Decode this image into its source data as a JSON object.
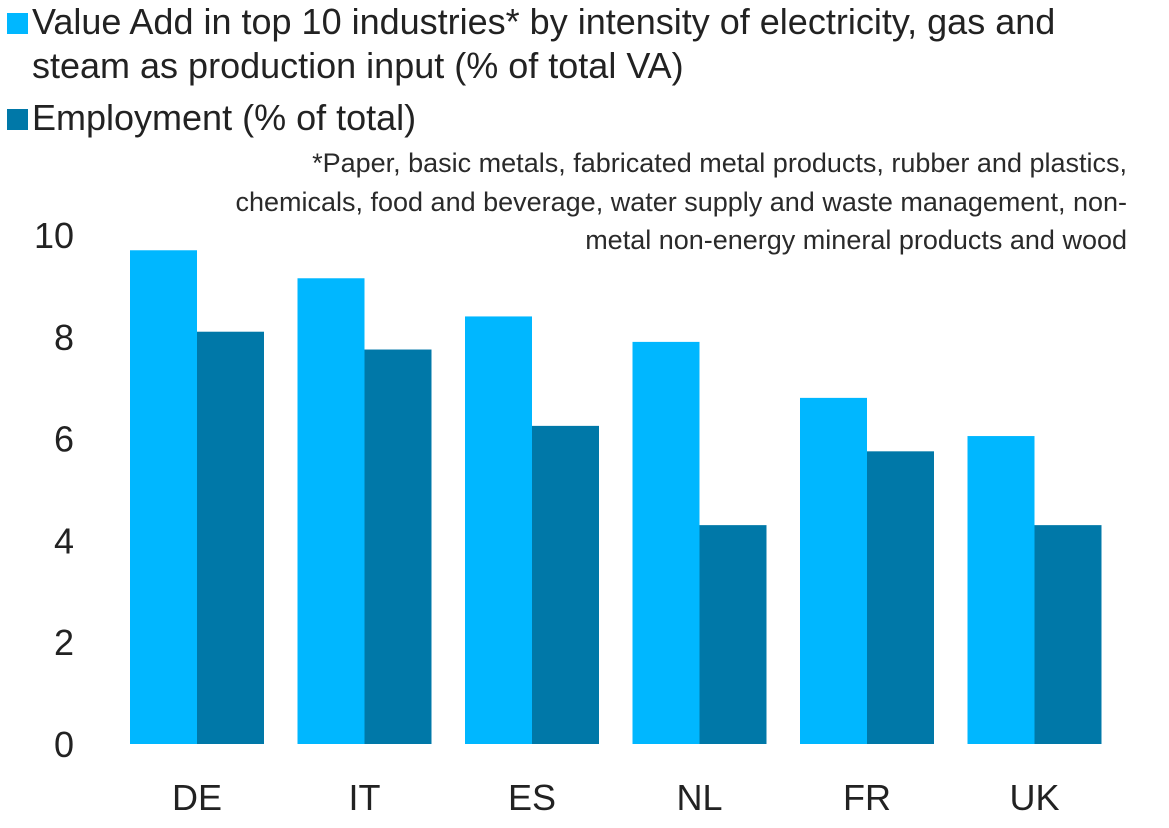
{
  "chart_data": {
    "type": "bar",
    "title": "",
    "xlabel": "",
    "ylabel": "",
    "categories": [
      "DE",
      "IT",
      "ES",
      "NL",
      "FR",
      "UK"
    ],
    "series": [
      {
        "name": "Value Add in top 10 industries* by intensity of electricity, gas and steam as production input (% of total VA)",
        "color": "#00B7FF",
        "values": [
          9.7,
          9.15,
          8.4,
          7.9,
          6.8,
          6.05
        ]
      },
      {
        "name": "Employment (% of total)",
        "color": "#0078A8",
        "values": [
          8.1,
          7.75,
          6.25,
          4.3,
          5.75,
          4.3
        ]
      }
    ],
    "ylim": [
      0,
      10
    ],
    "yticks": [
      "0",
      "2",
      "4",
      "6",
      "8",
      "10"
    ],
    "grid": false,
    "legend_position": "top-left",
    "footnote": "*Paper, basic metals, fabricated metal products, rubber and plastics, chemicals, food and beverage, water supply and waste management, non-metal non-energy mineral products and wood"
  }
}
